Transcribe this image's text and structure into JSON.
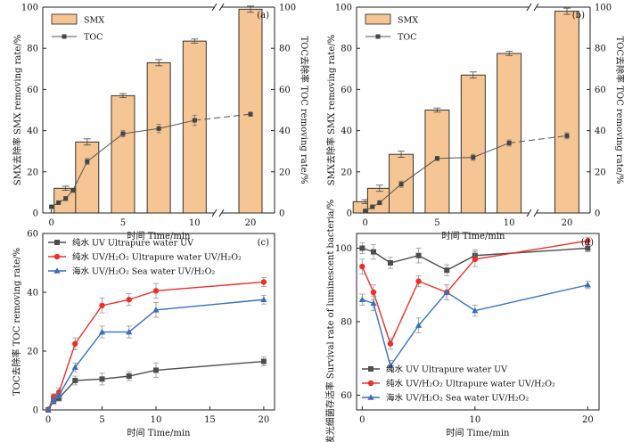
{
  "chart_data": [
    {
      "type": "bar",
      "panel_letter": "(a)",
      "xlabel": "时间 Time/min",
      "ylabel": "SMX去除率 SMX removing rate/%",
      "y2label": "TOC去除率 TOC removing rate/%",
      "ylim": [
        0,
        100
      ],
      "y2lim": [
        0,
        100
      ],
      "yticks": [
        "0",
        "20",
        "40",
        "60",
        "80",
        "100"
      ],
      "xticks": [
        "0",
        "5",
        "10",
        "20"
      ],
      "axis_break": true,
      "legend_position": "top-left",
      "series": [
        {
          "name": "SMX",
          "kind": "bar",
          "x": [
            1,
            2.5,
            5,
            7.5,
            10,
            20
          ],
          "values": [
            12,
            34.5,
            57,
            73,
            83.5,
            99
          ],
          "errors": [
            1,
            1.5,
            1,
            1.5,
            1,
            1.5
          ]
        },
        {
          "name": "TOC",
          "kind": "line",
          "x": [
            0,
            0.5,
            1,
            1.5,
            2.5,
            5,
            7.5,
            10,
            20
          ],
          "values": [
            3,
            5,
            7,
            11,
            25,
            38.5,
            41,
            45,
            48
          ],
          "errors": [
            0.5,
            0.5,
            1,
            1,
            1.5,
            1.5,
            2,
            2.5,
            1
          ]
        }
      ]
    },
    {
      "type": "bar",
      "panel_letter": "(b)",
      "xlabel": "时间 Time/min",
      "ylabel": "SMX去除率 SMX removing rate/%",
      "y2label": "TOC去除率 TOC removing rate/%",
      "ylim": [
        0,
        100
      ],
      "y2lim": [
        0,
        100
      ],
      "yticks": [
        "0",
        "20",
        "40",
        "60",
        "80",
        "100"
      ],
      "xticks": [
        "0",
        "5",
        "10",
        "20"
      ],
      "axis_break": true,
      "legend_position": "top-left",
      "series": [
        {
          "name": "SMX",
          "kind": "bar",
          "x": [
            0,
            1,
            2.5,
            5,
            7.5,
            10,
            20
          ],
          "values": [
            5.5,
            12,
            28.5,
            50,
            67,
            77.5,
            98
          ],
          "errors": [
            1,
            1.5,
            1.5,
            1,
            1.5,
            1,
            1.5
          ]
        },
        {
          "name": "TOC",
          "kind": "line",
          "x": [
            0,
            0.5,
            1,
            2.5,
            5,
            7.5,
            10,
            20
          ],
          "values": [
            1,
            3,
            5,
            14,
            26.5,
            27,
            34,
            37.5
          ],
          "errors": [
            0.5,
            0.5,
            1,
            1.5,
            1,
            1.5,
            1.5,
            1.5
          ]
        }
      ]
    },
    {
      "type": "line",
      "panel_letter": "(c)",
      "xlabel": "时间 Time/min",
      "ylabel": "TOC去除率 TOC removing rate/%",
      "xlim": [
        -0.5,
        21
      ],
      "ylim": [
        0,
        60
      ],
      "xticks": [
        "0",
        "5",
        "10",
        "15",
        "20"
      ],
      "yticks": [
        "0",
        "20",
        "40",
        "60"
      ],
      "legend_position": "top-left",
      "x": [
        0,
        0.5,
        1,
        2.5,
        5,
        7.5,
        10,
        20
      ],
      "series": [
        {
          "name": "纯水 UV Ultrapure water UV",
          "color": "#4d4d4d",
          "marker": "square",
          "values": [
            0,
            3,
            4,
            10,
            10.5,
            11.5,
            13.5,
            16.5
          ],
          "errors": [
            0.5,
            1,
            1,
            1.5,
            2,
            1.5,
            2.5,
            1.5
          ]
        },
        {
          "name": "纯水 UV/H₂O₂ Ultrapure water UV/H₂O₂",
          "color": "#e8312a",
          "marker": "circle",
          "values": [
            0,
            4.5,
            6,
            22.5,
            35.5,
            37.5,
            40.5,
            43.5
          ],
          "errors": [
            0.5,
            1,
            1.5,
            2,
            2.5,
            2,
            2.5,
            1.5
          ]
        },
        {
          "name": "海水 UV/H₂O₂ Sea water UV/H₂O₂",
          "color": "#3a6fb8",
          "marker": "triangle",
          "values": [
            0,
            3.5,
            5,
            14.5,
            26.5,
            26.5,
            34,
            37.5
          ],
          "errors": [
            0.5,
            1,
            1,
            1.5,
            2,
            2,
            2.5,
            1.5
          ]
        }
      ]
    },
    {
      "type": "line",
      "panel_letter": "(d)",
      "xlabel": "时间 Time/min",
      "ylabel": "发光细菌存活率 Survival rate of luminescent bacteria/%",
      "xlim": [
        -0.5,
        21
      ],
      "ylim": [
        56,
        104
      ],
      "xticks": [
        "0",
        "10",
        "20"
      ],
      "yticks": [
        "60",
        "80",
        "100"
      ],
      "legend_position": "bottom-left",
      "x": [
        0,
        1,
        2.5,
        5,
        7.5,
        10,
        20
      ],
      "series": [
        {
          "name": "纯水 UV Ultrapure water UV",
          "color": "#4d4d4d",
          "marker": "square",
          "values": [
            100,
            99,
            96,
            98,
            94,
            98,
            100
          ],
          "errors": [
            1.5,
            2,
            1.5,
            2,
            1.5,
            1.5,
            1
          ]
        },
        {
          "name": "纯水 UV/H₂O₂ Ultrapure water UV/H₂O₂",
          "color": "#e8312a",
          "marker": "circle",
          "values": [
            95,
            88,
            74,
            91,
            88,
            97,
            102
          ],
          "errors": [
            2,
            2,
            1.5,
            1.5,
            2,
            2,
            1
          ]
        },
        {
          "name": "海水 UV/H₂O₂ Sea water UV/H₂O₂",
          "color": "#3a6fb8",
          "marker": "triangle",
          "values": [
            86,
            85,
            68,
            79,
            88,
            83,
            90
          ],
          "errors": [
            1.5,
            2,
            1.5,
            2,
            2,
            1.5,
            1
          ]
        }
      ]
    }
  ],
  "colors": {
    "bar_fill": "#f5c593",
    "bar_stroke": "#222222",
    "toc_line": "#555555",
    "axis": "#222222"
  }
}
